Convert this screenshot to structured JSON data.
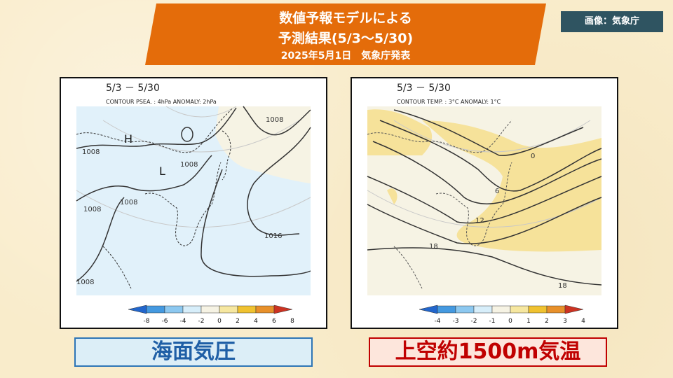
{
  "header": {
    "title_line1": "数値予報モデルによる",
    "title_line2": "予測結果(5/3～5/30)",
    "title_line3": "2025年5月1日　気象庁発表",
    "credit": "画像：気象庁"
  },
  "colors": {
    "banner": "#e46c0a",
    "credit_bg": "#2f5461",
    "label_blue": "#1f5fa6",
    "label_red": "#c00000"
  },
  "maps": [
    {
      "period": "5/3 － 5/30",
      "contour_note": "CONTOUR PSEA. :  4hPa     ANOMALY:  2hPa",
      "pressure_markers": [
        "H",
        "L"
      ],
      "contour_labels": [
        "1008",
        "1008",
        "1008",
        "1008",
        "1008",
        "1008",
        "1016"
      ],
      "legend_ticks": [
        "-8",
        "-6",
        "-4",
        "-2",
        "0",
        "2",
        "4",
        "6",
        "8"
      ],
      "legend_colors": [
        "#2266cc",
        "#4499e0",
        "#8cc8f0",
        "#d7eefa",
        "#f6f3e4",
        "#f6e7a0",
        "#f0c230",
        "#e8902a",
        "#cc3322"
      ],
      "label": "海面気圧"
    },
    {
      "period": "5/3 － 5/30",
      "contour_note": "CONTOUR TEMP. :  3°C     ANOMALY:  1°C",
      "contour_labels": [
        "0",
        "6",
        "12",
        "18",
        "18"
      ],
      "legend_ticks": [
        "-4",
        "-3",
        "-2",
        "-1",
        "0",
        "1",
        "2",
        "3",
        "4"
      ],
      "legend_colors": [
        "#2266cc",
        "#4499e0",
        "#8cc8f0",
        "#d7eefa",
        "#f6f3e4",
        "#f6e7a0",
        "#f0c230",
        "#e8902a",
        "#cc3322"
      ],
      "label": "上空約1500m気温"
    }
  ]
}
